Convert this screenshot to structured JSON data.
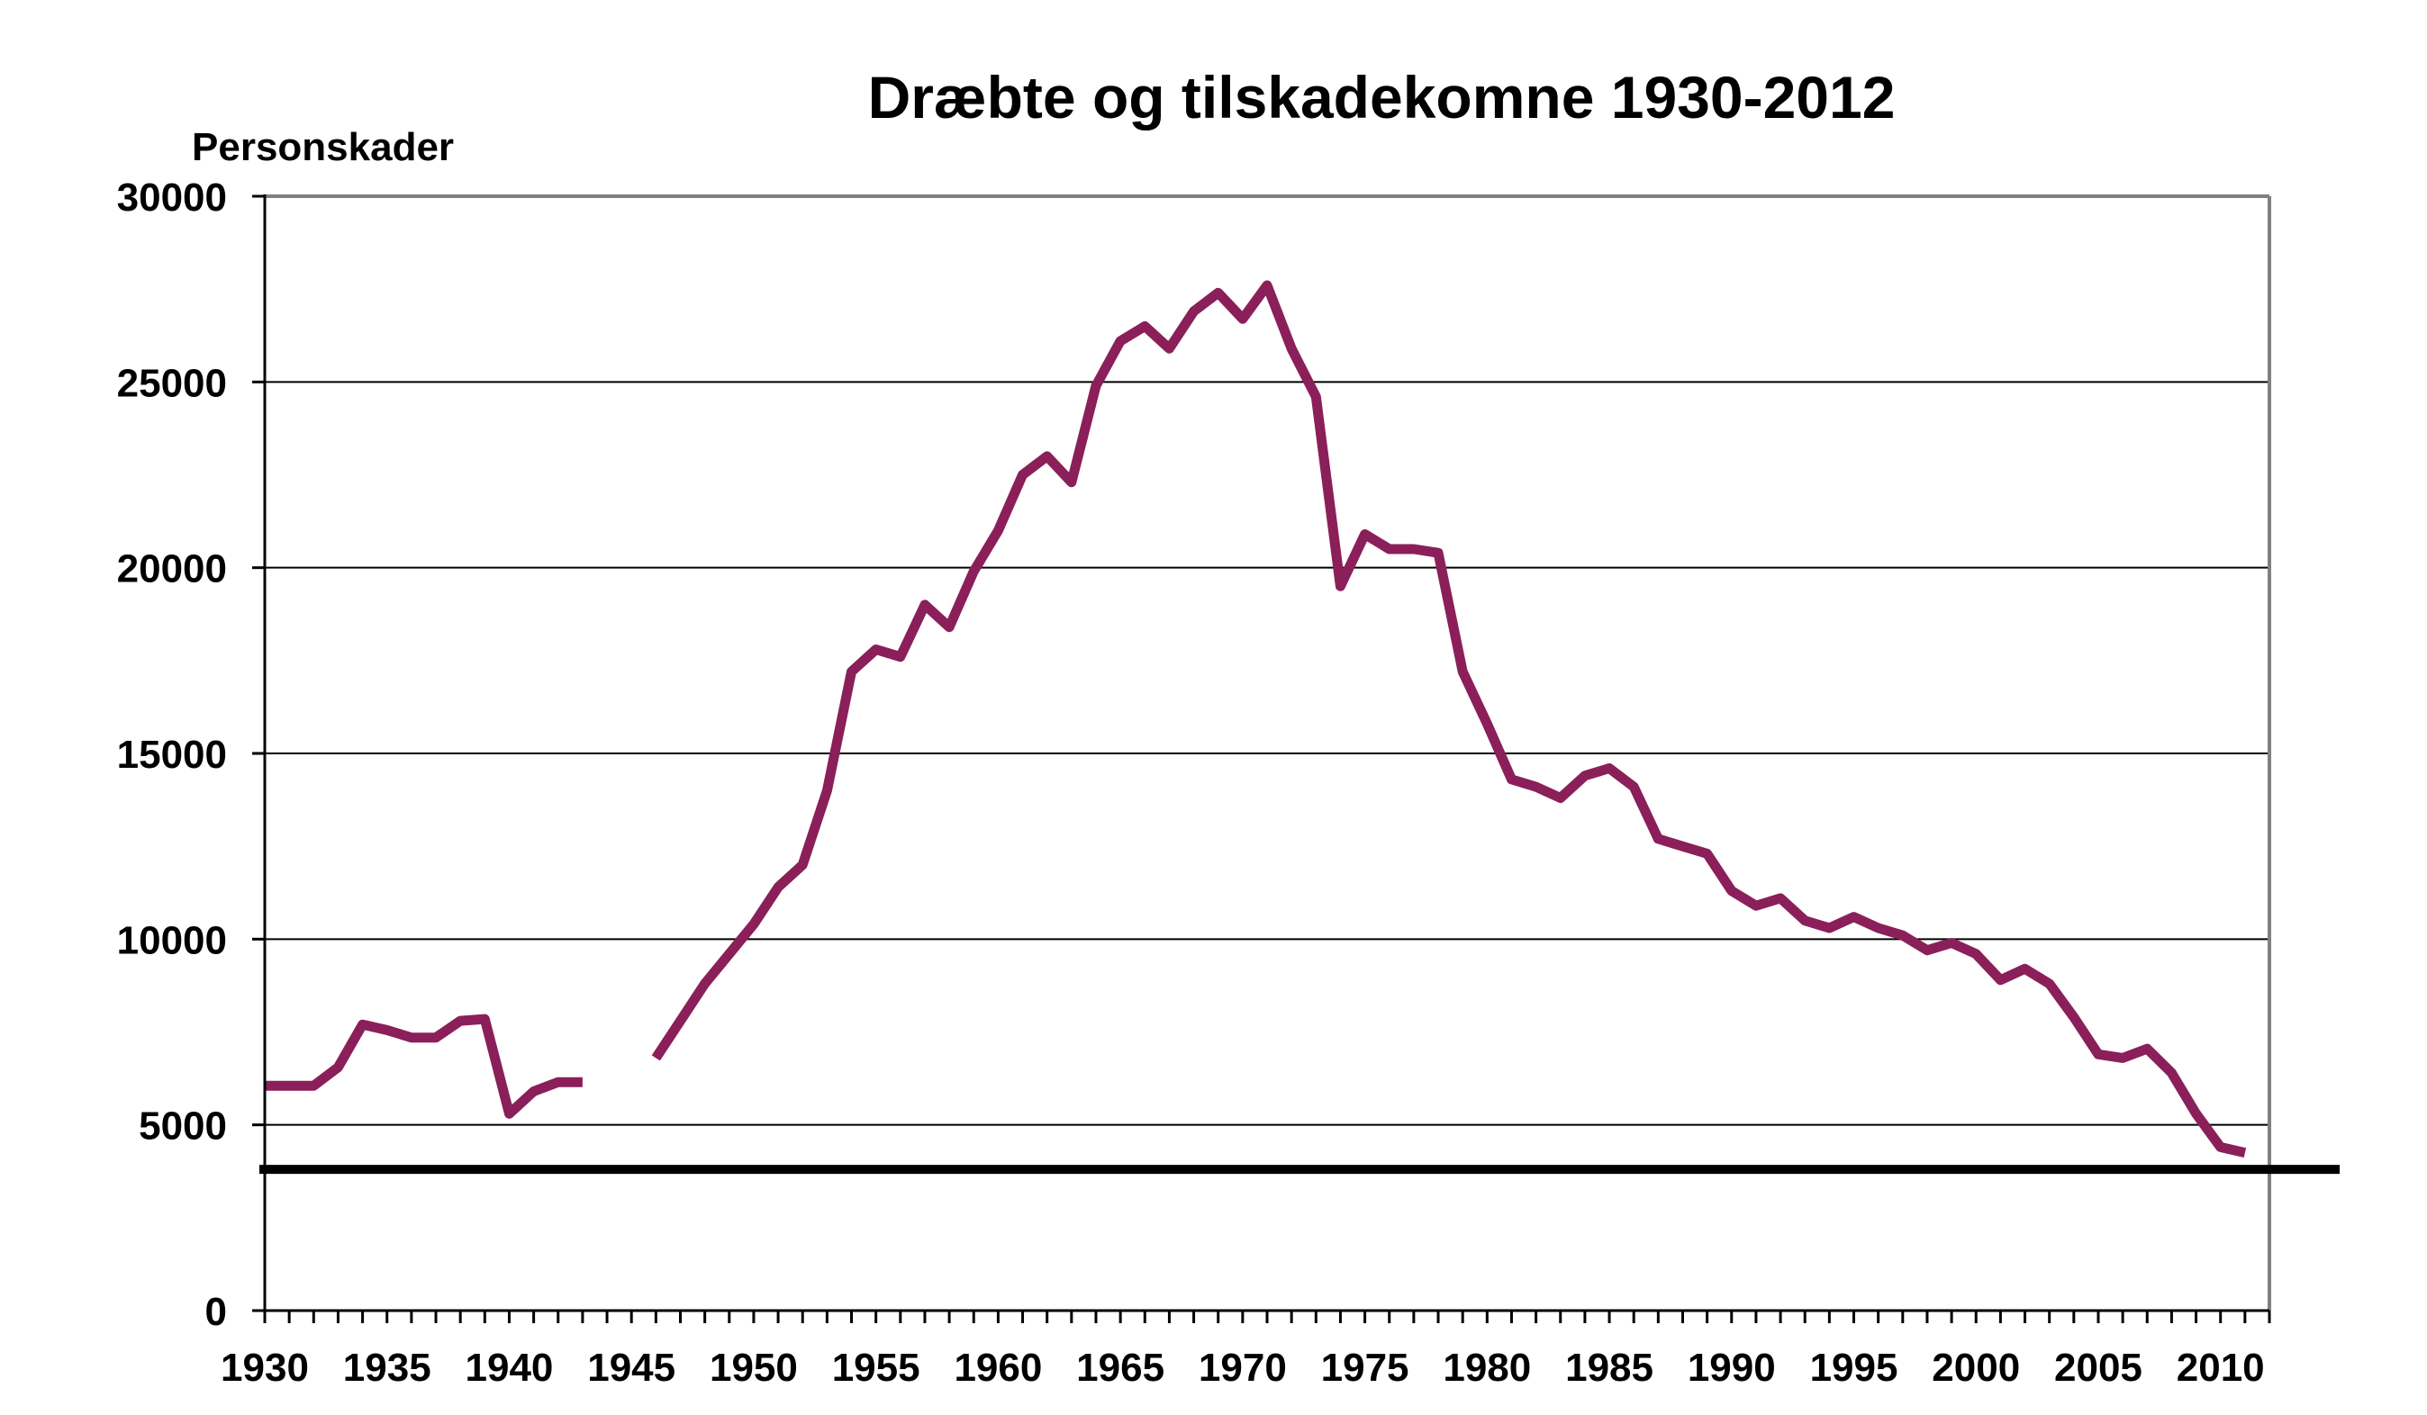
{
  "chart_data": {
    "type": "line",
    "title": "Dræbte og tilskadekomne 1930-2012",
    "ylabel": "Personskader",
    "xlabel": "",
    "ylim": [
      0,
      30000
    ],
    "xlim": [
      1930,
      2012
    ],
    "yticks": [
      0,
      5000,
      10000,
      15000,
      20000,
      25000,
      30000
    ],
    "xticks": [
      1930,
      1935,
      1940,
      1945,
      1950,
      1955,
      1960,
      1965,
      1970,
      1975,
      1980,
      1985,
      1990,
      1995,
      2000,
      2005,
      2010
    ],
    "grid": true,
    "reference_line": 3800,
    "colors": {
      "series": "#8b1f5a",
      "grid": "#000000",
      "reference": "#000000",
      "frame": "#808080"
    },
    "series": [
      {
        "segments": [
          [
            [
              1930,
              6050
            ],
            [
              1931,
              6050
            ],
            [
              1932,
              6050
            ],
            [
              1933,
              6550
            ],
            [
              1934,
              7700
            ],
            [
              1935,
              7550
            ],
            [
              1936,
              7350
            ],
            [
              1937,
              7350
            ],
            [
              1938,
              7800
            ],
            [
              1939,
              7850
            ],
            [
              1940,
              5300
            ],
            [
              1941,
              5900
            ],
            [
              1942,
              6150
            ],
            [
              1943,
              6150
            ]
          ],
          [
            [
              1946,
              6800
            ],
            [
              1947,
              7800
            ],
            [
              1948,
              8800
            ],
            [
              1949,
              9600
            ],
            [
              1950,
              10400
            ],
            [
              1951,
              11400
            ],
            [
              1952,
              12000
            ],
            [
              1953,
              14000
            ],
            [
              1954,
              17200
            ],
            [
              1955,
              17800
            ],
            [
              1956,
              17600
            ],
            [
              1957,
              19000
            ],
            [
              1958,
              18400
            ],
            [
              1959,
              19900
            ],
            [
              1960,
              21000
            ],
            [
              1961,
              22500
            ],
            [
              1962,
              23000
            ],
            [
              1963,
              22300
            ],
            [
              1964,
              24900
            ],
            [
              1965,
              26100
            ],
            [
              1966,
              26500
            ],
            [
              1967,
              25900
            ],
            [
              1968,
              26900
            ],
            [
              1969,
              27400
            ],
            [
              1970,
              26700
            ],
            [
              1971,
              27600
            ],
            [
              1972,
              25900
            ],
            [
              1973,
              24600
            ],
            [
              1974,
              19500
            ],
            [
              1975,
              20900
            ],
            [
              1976,
              20500
            ],
            [
              1977,
              20500
            ],
            [
              1978,
              20400
            ],
            [
              1979,
              17200
            ],
            [
              1980,
              15800
            ],
            [
              1981,
              14300
            ],
            [
              1982,
              14100
            ],
            [
              1983,
              13800
            ],
            [
              1984,
              14400
            ],
            [
              1985,
              14600
            ],
            [
              1986,
              14100
            ],
            [
              1987,
              12700
            ],
            [
              1988,
              12500
            ],
            [
              1989,
              12300
            ],
            [
              1990,
              11300
            ],
            [
              1991,
              10900
            ],
            [
              1992,
              11100
            ],
            [
              1993,
              10500
            ],
            [
              1994,
              10300
            ],
            [
              1995,
              10600
            ],
            [
              1996,
              10300
            ],
            [
              1997,
              10100
            ],
            [
              1998,
              9700
            ],
            [
              1999,
              9900
            ],
            [
              2000,
              9600
            ],
            [
              2001,
              8900
            ],
            [
              2002,
              9200
            ],
            [
              2003,
              8800
            ],
            [
              2004,
              7900
            ],
            [
              2005,
              6900
            ],
            [
              2006,
              6800
            ],
            [
              2007,
              7050
            ],
            [
              2008,
              6400
            ],
            [
              2009,
              5300
            ],
            [
              2010,
              4400
            ],
            [
              2011,
              4250
            ]
          ]
        ]
      }
    ]
  }
}
